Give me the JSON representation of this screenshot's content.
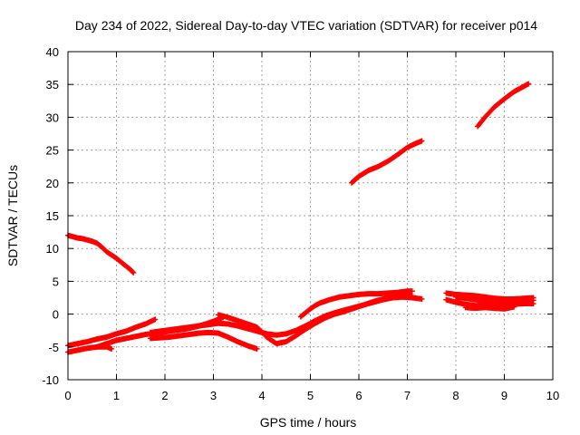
{
  "chart_data": {
    "type": "scatter",
    "title": "Day 234 of 2022, Sidereal Day-to-day VTEC variation (SDTVAR) for receiver p014",
    "xlabel": "GPS time / hours",
    "ylabel": "SDTVAR / TECUs",
    "xlim": [
      0,
      10
    ],
    "ylim": [
      -10,
      40
    ],
    "xticks": [
      "0",
      "1",
      "2",
      "3",
      "4",
      "5",
      "6",
      "7",
      "8",
      "9",
      "10"
    ],
    "yticks": [
      "-10",
      "-5",
      "0",
      "5",
      "10",
      "15",
      "20",
      "25",
      "30",
      "35",
      "40"
    ],
    "grid": true,
    "marker": "plus",
    "series_color": "#ff0000",
    "series": [
      {
        "x": [
          0.0,
          0.1,
          0.2,
          0.3,
          0.4,
          0.5,
          0.6,
          0.7,
          0.8,
          0.9,
          1.0,
          1.1,
          1.2,
          1.3,
          1.35
        ],
        "y": [
          12.0,
          11.8,
          11.6,
          11.5,
          11.3,
          11.1,
          10.8,
          10.2,
          9.5,
          9.0,
          8.5,
          7.9,
          7.3,
          6.7,
          6.3
        ]
      },
      {
        "x": [
          5.85,
          6.0,
          6.2,
          6.4,
          6.6,
          6.8,
          7.0,
          7.2,
          7.3
        ],
        "y": [
          20.0,
          21.0,
          21.9,
          22.5,
          23.3,
          24.3,
          25.4,
          26.1,
          26.4
        ]
      },
      {
        "x": [
          8.45,
          8.6,
          8.8,
          9.0,
          9.2,
          9.4,
          9.5
        ],
        "y": [
          28.6,
          30.0,
          31.6,
          32.8,
          33.9,
          34.7,
          35.1
        ]
      },
      {
        "x": [
          0.0,
          0.2,
          0.4,
          0.6,
          0.8,
          1.0,
          1.2,
          1.4,
          1.6,
          1.8
        ],
        "y": [
          -4.8,
          -4.5,
          -4.2,
          -3.8,
          -3.5,
          -3.0,
          -2.6,
          -2.0,
          -1.5,
          -0.8
        ]
      },
      {
        "x": [
          0.0,
          0.2,
          0.4,
          0.6,
          0.8,
          0.9
        ],
        "y": [
          -5.8,
          -5.5,
          -5.2,
          -5.0,
          -5.0,
          -5.3
        ]
      },
      {
        "x": [
          0.6,
          0.8,
          1.0,
          1.2,
          1.4,
          1.6,
          1.8,
          2.0,
          2.2,
          2.4,
          2.6,
          2.8,
          3.0,
          3.2
        ],
        "y": [
          -5.0,
          -4.5,
          -4.0,
          -3.7,
          -3.4,
          -3.1,
          -2.9,
          -2.7,
          -2.5,
          -2.3,
          -2.0,
          -1.6,
          -1.1,
          -0.5
        ]
      },
      {
        "x": [
          1.7,
          1.9,
          2.1,
          2.3,
          2.5,
          2.7,
          2.9,
          3.1,
          3.3,
          3.5,
          3.7,
          3.9
        ],
        "y": [
          -3.7,
          -3.6,
          -3.5,
          -3.3,
          -3.1,
          -2.9,
          -2.8,
          -2.9,
          -3.5,
          -4.2,
          -4.8,
          -5.3
        ]
      },
      {
        "x": [
          1.7,
          1.9,
          2.1,
          2.3,
          2.5,
          2.7,
          2.9,
          3.1,
          3.3,
          3.5,
          3.7,
          3.9,
          4.1,
          4.3,
          4.5,
          4.7,
          4.9,
          5.1,
          5.3,
          5.5,
          5.7,
          5.9,
          6.1,
          6.3,
          6.5,
          6.7,
          6.9,
          7.1,
          7.3
        ],
        "y": [
          -2.8,
          -2.6,
          -2.4,
          -2.2,
          -2.0,
          -1.8,
          -1.6,
          -1.4,
          -1.5,
          -1.8,
          -2.2,
          -2.6,
          -3.0,
          -3.2,
          -3.0,
          -2.5,
          -1.8,
          -1.0,
          -0.3,
          0.2,
          0.6,
          1.0,
          1.4,
          1.8,
          2.2,
          2.5,
          2.6,
          2.5,
          2.3
        ]
      },
      {
        "x": [
          3.1,
          3.3,
          3.5,
          3.7,
          3.9,
          4.1,
          4.3,
          4.5,
          4.7,
          4.9,
          5.1,
          5.3,
          5.5,
          5.7,
          5.9,
          6.1,
          6.3,
          6.5,
          6.7,
          6.9,
          7.1
        ],
        "y": [
          -0.1,
          -0.5,
          -1.0,
          -1.5,
          -2.0,
          -3.5,
          -4.5,
          -4.2,
          -3.3,
          -2.3,
          -1.4,
          -0.6,
          0.0,
          0.4,
          0.9,
          1.4,
          1.9,
          2.3,
          2.6,
          2.8,
          2.8
        ]
      },
      {
        "x": [
          4.8,
          4.9,
          5.0,
          5.1,
          5.2,
          5.4,
          5.6,
          5.8,
          6.0,
          6.2,
          6.4,
          6.6,
          6.8,
          7.0,
          7.1
        ],
        "y": [
          -0.4,
          0.2,
          0.8,
          1.3,
          1.7,
          2.2,
          2.6,
          2.8,
          3.0,
          3.1,
          3.1,
          3.2,
          3.3,
          3.5,
          3.5
        ]
      },
      {
        "x": [
          7.8,
          8.0,
          8.2,
          8.4,
          8.6,
          8.8,
          9.0,
          9.2,
          9.4,
          9.6
        ],
        "y": [
          3.2,
          3.0,
          2.9,
          2.8,
          2.6,
          2.4,
          2.3,
          2.3,
          2.4,
          2.5
        ]
      },
      {
        "x": [
          7.8,
          8.0,
          8.2,
          8.4,
          8.6,
          8.8,
          9.0,
          9.2,
          9.4,
          9.6
        ],
        "y": [
          2.2,
          1.8,
          1.5,
          1.3,
          1.2,
          1.2,
          1.4,
          1.5,
          1.6,
          1.6
        ]
      },
      {
        "x": [
          8.0,
          8.2,
          8.4,
          8.6,
          8.8,
          9.0,
          9.2,
          9.4,
          9.6
        ],
        "y": [
          2.6,
          2.4,
          2.2,
          1.9,
          1.6,
          1.7,
          1.9,
          2.0,
          2.1
        ]
      },
      {
        "x": [
          8.2,
          8.4,
          8.6,
          8.8,
          9.0,
          9.2
        ],
        "y": [
          1.0,
          0.9,
          1.0,
          0.9,
          0.8,
          1.1
        ]
      }
    ]
  }
}
